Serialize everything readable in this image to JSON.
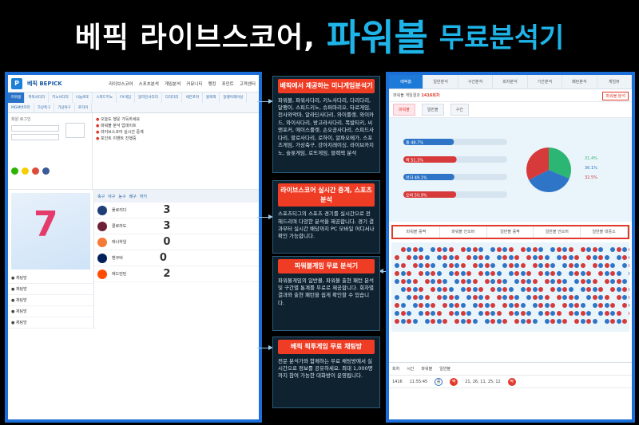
{
  "headline": {
    "part1": "베픽 라이브스코어,",
    "part2": "파워볼",
    "part3": "무료분석기"
  },
  "left_site": {
    "brand": "베픽 BEPICK",
    "nav": [
      "라이브스코어",
      "스포츠분석",
      "게임분석",
      "커뮤니티",
      "랭킹",
      "포인트",
      "고객센터"
    ],
    "tabs": [
      "파워볼",
      "파워사다리",
      "키노사다리",
      "나눔로또",
      "스피드키노",
      "FX게임",
      "알라딘사다리",
      "다리다리",
      "세븐포커",
      "블랙잭",
      "달팽이레이싱",
      "MGM바카라",
      "가상축구",
      "가상야구",
      "로하이"
    ],
    "login_title": "회원 로그인",
    "news": [
      "오늘도 행운 가득하세요",
      "파워볼 분석 업데이트",
      "라이브스코어 실시간 중계",
      "포인트 이벤트 진행중"
    ],
    "score_tabs": [
      "축구",
      "야구",
      "농구",
      "배구",
      "하키"
    ],
    "teams": [
      "플로리다",
      "콜로라도",
      "애너하임",
      "밴쿠버",
      "에드먼턴"
    ],
    "scores": [
      "3",
      "3",
      "0",
      "0",
      "2"
    ]
  },
  "middle": {
    "box1_title": "베픽에서 제공하는 미니게임분석기",
    "box1_text": "파워볼, 파워사다리, 키노사다리, 다리다리, 달팽이, 스피드키노, 슈퍼마리오, 타로게임, 천사와악마, 알라딘사다리, 와이룰렛, 와이카드, 와이사다리, 방고라사다리, 폭발티키, 씨앤포커, 에이스룰렛, 손오공사다리, 스피드사다리, 할로사다리, 로하이, 알파오메가, 스포츠게임, 가상축구, 강아지레이싱, 라이브카지노, 슬롯게임, 로또게임, 블랙잭 분석",
    "box2_title": "라이브스코어 실시간 중계, 스포츠분석",
    "box2_text": "스포츠티그의 스포츠 경기를 실시간으로 전해드리며 다양한 분석을 제공합니다. 경기 결과부터 실시간 배당까지 PC 모바일 어디서나 확인 가능합니다.",
    "box3_title": "파워볼게임 무료 분석기",
    "box3_text": "파워볼게임의 일반볼, 파워볼 출현 패턴 분석 및 구간별 통계를 무료로 제공합니다. 회차별 결과와 출현 패턴을 쉽게 확인할 수 있습니다.",
    "box4_title": "베픽 픽투게임 무료 채팅방",
    "box4_text": "전문 분석가와 함께하는 무료 채팅방에서 실시간으로 정보를 공유하세요. 최대 1,000명까지 참여 가능한 대화방이 운영됩니다."
  },
  "right_site": {
    "tabs": [
      "베픽홈",
      "일반분석",
      "구간분석",
      "회차분석",
      "기간분석",
      "패턴분석",
      "게임뷰"
    ],
    "info_round": "1416회차",
    "info_text": "파워볼 게임결과",
    "info_button": "파워볼 분석"
  },
  "chart_data": {
    "type": "bar",
    "title": "",
    "xlabel": "",
    "ylabel": "",
    "categories": [
      "홀",
      "짝",
      "언더",
      "오버"
    ],
    "series": [
      {
        "values": [
          48.7,
          51.3,
          49.1,
          50.9
        ]
      }
    ],
    "pie": {
      "values": [
        31.4,
        36.1,
        32.5
      ]
    }
  },
  "colors": {
    "accent_blue": "#1b6fd6",
    "headline_blue": "#1fb4e8",
    "alert_red": "#e03a2b",
    "pie_green": "#2bb673",
    "pie_blue": "#2e75c7",
    "pie_red": "#d63a3a"
  }
}
